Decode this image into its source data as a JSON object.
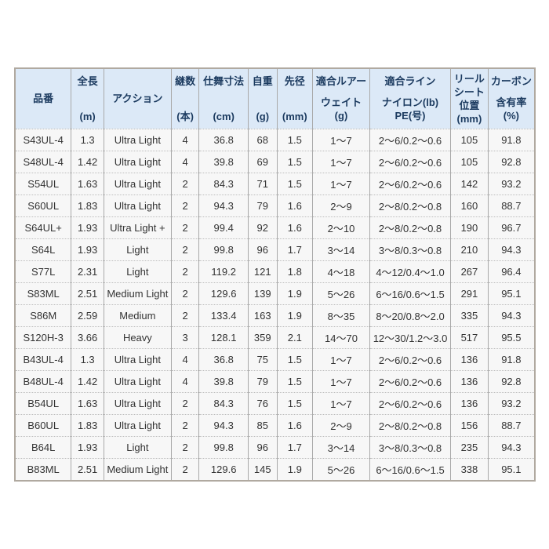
{
  "colors": {
    "header_bg": "#dce9f7",
    "header_text": "#1b3a5f",
    "body_text": "#333333",
    "row_bg": "#f7f7f7",
    "column_border": "#a9a9a9",
    "row_separator_dotted": "#bdbdbd",
    "outer_border": "#b0a9a0",
    "page_bg": "#ffffff"
  },
  "table": {
    "columns": [
      {
        "id": "model",
        "lines": [
          "品番"
        ]
      },
      {
        "id": "length",
        "lines": [
          "全長",
          "(m)"
        ]
      },
      {
        "id": "action",
        "lines": [
          "アクション"
        ]
      },
      {
        "id": "sections",
        "lines": [
          "継数",
          "(本)"
        ]
      },
      {
        "id": "closed",
        "lines": [
          "仕舞寸法",
          "(cm)"
        ]
      },
      {
        "id": "weight",
        "lines": [
          "自重",
          "(g)"
        ]
      },
      {
        "id": "tip",
        "lines": [
          "先径",
          "(mm)"
        ]
      },
      {
        "id": "lure-weight",
        "lines": [
          "適合ルアー",
          "ウェイト",
          "(g)"
        ]
      },
      {
        "id": "line",
        "lines": [
          "適合ライン",
          "ナイロン(lb)",
          "PE(号)"
        ]
      },
      {
        "id": "reel-seat",
        "lines": [
          "リール",
          "シート",
          "位置",
          "(mm)"
        ]
      },
      {
        "id": "carbon",
        "lines": [
          "カーボン",
          "含有率",
          "(%)"
        ]
      }
    ],
    "rows": [
      [
        "S43UL-4",
        "1.3",
        "Ultra Light",
        "4",
        "36.8",
        "68",
        "1.5",
        "1〜7",
        "2〜6/0.2〜0.6",
        "105",
        "91.8"
      ],
      [
        "S48UL-4",
        "1.42",
        "Ultra Light",
        "4",
        "39.8",
        "69",
        "1.5",
        "1〜7",
        "2〜6/0.2〜0.6",
        "105",
        "92.8"
      ],
      [
        "S54UL",
        "1.63",
        "Ultra Light",
        "2",
        "84.3",
        "71",
        "1.5",
        "1〜7",
        "2〜6/0.2〜0.6",
        "142",
        "93.2"
      ],
      [
        "S60UL",
        "1.83",
        "Ultra Light",
        "2",
        "94.3",
        "79",
        "1.6",
        "2〜9",
        "2〜8/0.2〜0.8",
        "160",
        "88.7"
      ],
      [
        "S64UL+",
        "1.93",
        "Ultra Light +",
        "2",
        "99.4",
        "92",
        "1.6",
        "2〜10",
        "2〜8/0.2〜0.8",
        "190",
        "96.7"
      ],
      [
        "S64L",
        "1.93",
        "Light",
        "2",
        "99.8",
        "96",
        "1.7",
        "3〜14",
        "3〜8/0.3〜0.8",
        "210",
        "94.3"
      ],
      [
        "S77L",
        "2.31",
        "Light",
        "2",
        "119.2",
        "121",
        "1.8",
        "4〜18",
        "4〜12/0.4〜1.0",
        "267",
        "96.4"
      ],
      [
        "S83ML",
        "2.51",
        "Medium Light",
        "2",
        "129.6",
        "139",
        "1.9",
        "5〜26",
        "6〜16/0.6〜1.5",
        "291",
        "95.1"
      ],
      [
        "S86M",
        "2.59",
        "Medium",
        "2",
        "133.4",
        "163",
        "1.9",
        "8〜35",
        "8〜20/0.8〜2.0",
        "335",
        "94.3"
      ],
      [
        "S120H-3",
        "3.66",
        "Heavy",
        "3",
        "128.1",
        "359",
        "2.1",
        "14〜70",
        "12〜30/1.2〜3.0",
        "517",
        "95.5"
      ],
      [
        "B43UL-4",
        "1.3",
        "Ultra Light",
        "4",
        "36.8",
        "75",
        "1.5",
        "1〜7",
        "2〜6/0.2〜0.6",
        "136",
        "91.8"
      ],
      [
        "B48UL-4",
        "1.42",
        "Ultra Light",
        "4",
        "39.8",
        "79",
        "1.5",
        "1〜7",
        "2〜6/0.2〜0.6",
        "136",
        "92.8"
      ],
      [
        "B54UL",
        "1.63",
        "Ultra Light",
        "2",
        "84.3",
        "76",
        "1.5",
        "1〜7",
        "2〜6/0.2〜0.6",
        "136",
        "93.2"
      ],
      [
        "B60UL",
        "1.83",
        "Ultra Light",
        "2",
        "94.3",
        "85",
        "1.6",
        "2〜9",
        "2〜8/0.2〜0.8",
        "156",
        "88.7"
      ],
      [
        "B64L",
        "1.93",
        "Light",
        "2",
        "99.8",
        "96",
        "1.7",
        "3〜14",
        "3〜8/0.3〜0.8",
        "235",
        "94.3"
      ],
      [
        "B83ML",
        "2.51",
        "Medium Light",
        "2",
        "129.6",
        "145",
        "1.9",
        "5〜26",
        "6〜16/0.6〜1.5",
        "338",
        "95.1"
      ]
    ]
  }
}
